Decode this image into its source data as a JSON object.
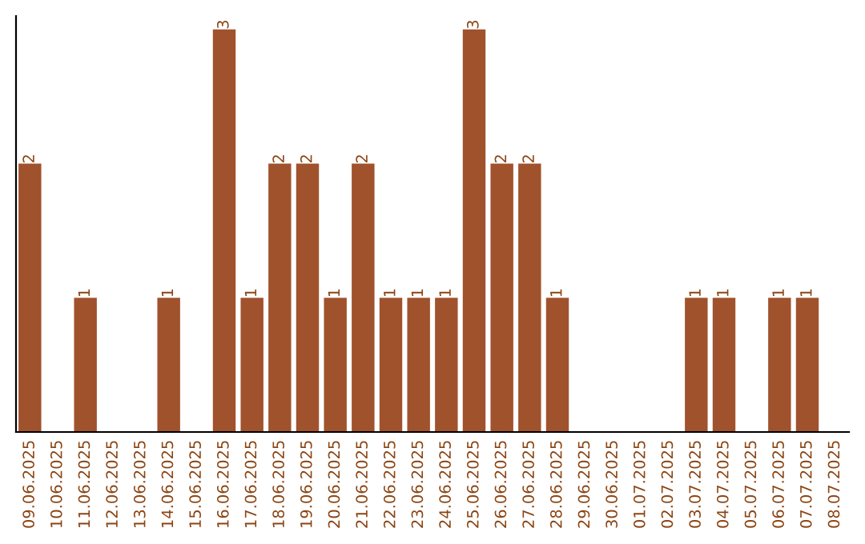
{
  "chart_data": {
    "type": "bar",
    "categories": [
      "09.06.2025",
      "10.06.2025",
      "11.06.2025",
      "12.06.2025",
      "13.06.2025",
      "14.06.2025",
      "15.06.2025",
      "16.06.2025",
      "17.06.2025",
      "18.06.2025",
      "19.06.2025",
      "20.06.2025",
      "21.06.2025",
      "22.06.2025",
      "23.06.2025",
      "24.06.2025",
      "25.06.2025",
      "26.06.2025",
      "27.06.2025",
      "28.06.2025",
      "29.06.2025",
      "30.06.2025",
      "01.07.2025",
      "02.07.2025",
      "03.07.2025",
      "04.07.2025",
      "05.07.2025",
      "06.07.2025",
      "07.07.2025",
      "08.07.2025"
    ],
    "values": [
      2,
      0,
      1,
      0,
      0,
      1,
      0,
      3,
      1,
      2,
      2,
      1,
      2,
      1,
      1,
      1,
      3,
      2,
      2,
      1,
      0,
      0,
      0,
      0,
      1,
      1,
      0,
      1,
      1,
      0
    ],
    "value_labels": [
      "2",
      null,
      "1",
      null,
      null,
      "1",
      null,
      "3",
      "1",
      "2",
      "2",
      "1",
      "2",
      "1",
      "1",
      "1",
      "3",
      "2",
      "2",
      "1",
      null,
      null,
      null,
      null,
      "1",
      "1",
      null,
      "1",
      "1",
      null
    ],
    "color": "#a0522d",
    "ylim": [
      0,
      3.1
    ],
    "tick_labels": "x",
    "grid": false
  }
}
